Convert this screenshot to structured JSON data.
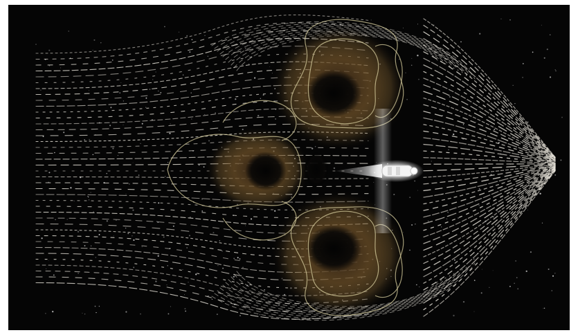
{
  "image": {
    "frame_background": "#050505",
    "page_background": "#ffffff",
    "colors": {
      "streamline": "#e9e6dc",
      "contour": "#d8cf9f",
      "warm_glow": "#8a6a36",
      "core_light": "#ffffff"
    },
    "icons": [
      "light-source-icon"
    ]
  }
}
